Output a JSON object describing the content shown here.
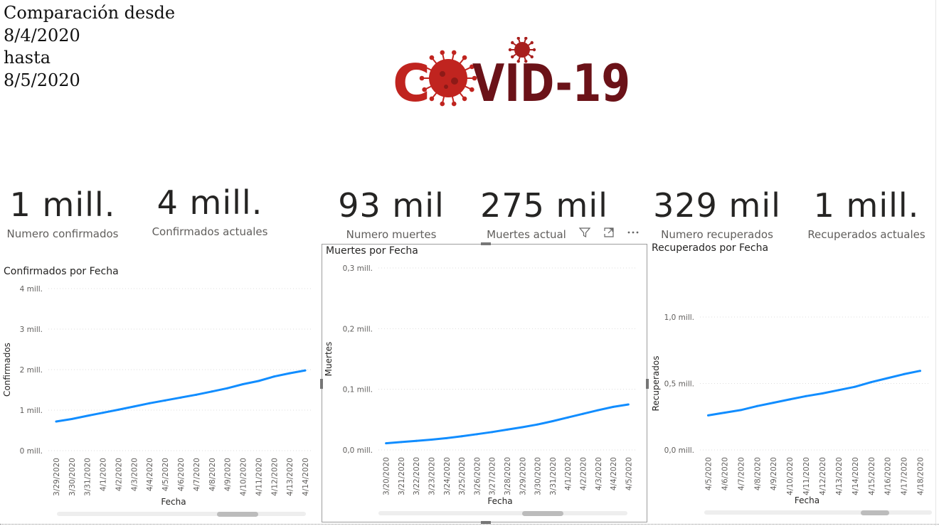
{
  "header": {
    "line1": "Comparación desde",
    "line2": "8/4/2020",
    "line3": "hasta",
    "line4": "8/5/2020"
  },
  "logo": {
    "text_left": "C",
    "text_right": "VID-19",
    "colors": {
      "red": "#c0241f",
      "dark": "#6b1218"
    }
  },
  "kpis": [
    {
      "value": "1 mill.",
      "label": "Numero confirmados"
    },
    {
      "value": "4 mill.",
      "label": "Confirmados actuales"
    },
    {
      "value": "93 mil",
      "label": "Numero muertes"
    },
    {
      "value": "275 mil",
      "label": "Muertes actual"
    },
    {
      "value": "329 mil",
      "label": "Numero recuperados"
    },
    {
      "value": "1 mill.",
      "label": "Recuperados actuales"
    }
  ],
  "toolbar": {
    "filter_icon": "filter-icon",
    "focus_icon": "focus-mode-icon",
    "more_icon": "more-options-icon"
  },
  "colors": {
    "line": "#118dff",
    "grid": "#dddddd",
    "axis_text": "#605e5c"
  },
  "chart_data": [
    {
      "type": "line",
      "title": "Confirmados por Fecha",
      "xlabel": "Fecha",
      "ylabel": "Confirmados",
      "yticks": [
        "0 mill.",
        "1 mill.",
        "2 mill.",
        "3 mill.",
        "4 mill."
      ],
      "ylim": [
        0,
        4000000
      ],
      "grid": true,
      "x": [
        "3/29/2020",
        "3/30/2020",
        "3/31/2020",
        "4/1/2020",
        "4/2/2020",
        "4/3/2020",
        "4/4/2020",
        "4/5/2020",
        "4/6/2020",
        "4/7/2020",
        "4/8/2020",
        "4/9/2020",
        "4/10/2020",
        "4/11/2020",
        "4/12/2020",
        "4/13/2020",
        "4/14/2020"
      ],
      "values": [
        720000,
        780000,
        860000,
        935000,
        1010000,
        1090000,
        1170000,
        1240000,
        1310000,
        1380000,
        1460000,
        1540000,
        1640000,
        1720000,
        1830000,
        1910000,
        1980000
      ]
    },
    {
      "type": "line",
      "title": "Muertes por Fecha",
      "xlabel": "Fecha",
      "ylabel": "Muertes",
      "yticks": [
        "0,0 mill.",
        "0,1 mill.",
        "0,2 mill.",
        "0,3 mill."
      ],
      "ylim": [
        0,
        300000
      ],
      "grid": true,
      "x": [
        "3/20/2020",
        "3/21/2020",
        "3/22/2020",
        "3/23/2020",
        "3/24/2020",
        "3/25/2020",
        "3/26/2020",
        "3/27/2020",
        "3/28/2020",
        "3/29/2020",
        "3/30/2020",
        "3/31/2020",
        "4/1/2020",
        "4/2/2020",
        "4/3/2020",
        "4/4/2020",
        "4/5/2020"
      ],
      "values": [
        11000,
        13000,
        15000,
        17000,
        19500,
        22500,
        26000,
        29500,
        33500,
        37500,
        42000,
        47500,
        53500,
        59500,
        65500,
        71000,
        75000
      ]
    },
    {
      "type": "line",
      "title": "Recuperados por Fecha",
      "xlabel": "Fecha",
      "ylabel": "Recuperados",
      "yticks": [
        "0,0 mill.",
        "0,5 mill.",
        "1,0 mill."
      ],
      "ylim": [
        0,
        1000000
      ],
      "grid": true,
      "x": [
        "4/5/2020",
        "4/6/2020",
        "4/7/2020",
        "4/8/2020",
        "4/9/2020",
        "4/10/2020",
        "4/11/2020",
        "4/12/2020",
        "4/13/2020",
        "4/14/2020",
        "4/15/2020",
        "4/16/2020",
        "4/17/2020",
        "4/18/2020"
      ],
      "values": [
        260000,
        280000,
        300000,
        330000,
        355000,
        380000,
        405000,
        425000,
        450000,
        475000,
        510000,
        540000,
        570000,
        595000
      ]
    }
  ]
}
